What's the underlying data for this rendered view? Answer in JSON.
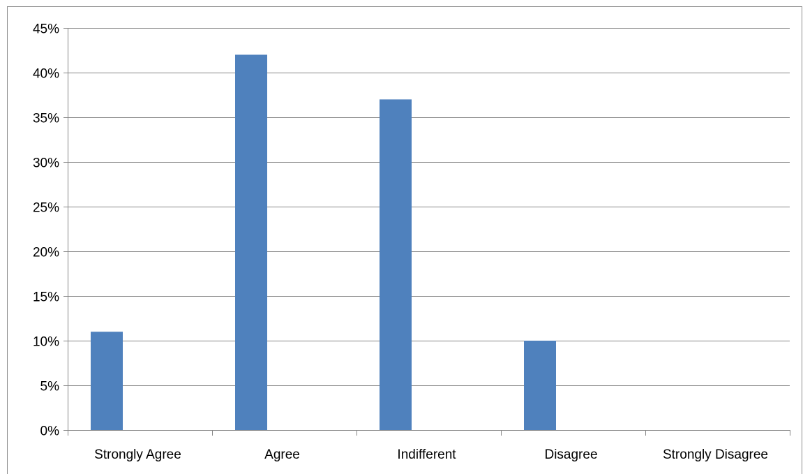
{
  "chart_data": {
    "type": "bar",
    "title": "",
    "xlabel": "",
    "ylabel": "",
    "categories": [
      "Strongly Agree",
      "Agree",
      "Indifferent",
      "Disagree",
      "Strongly Disagree"
    ],
    "values": [
      11,
      42,
      37,
      10,
      0
    ],
    "value_unit": "%",
    "ylim": [
      0,
      45
    ],
    "y_ticks": [
      0,
      5,
      10,
      15,
      20,
      25,
      30,
      35,
      40,
      45
    ],
    "y_tick_labels": [
      "0%",
      "5%",
      "10%",
      "15%",
      "20%",
      "25%",
      "30%",
      "35%",
      "40%",
      "45%"
    ],
    "grid": true,
    "legend": "none",
    "colors": {
      "bar": "#4F81BD",
      "gridline": "#868686",
      "axis": "#868686"
    }
  }
}
